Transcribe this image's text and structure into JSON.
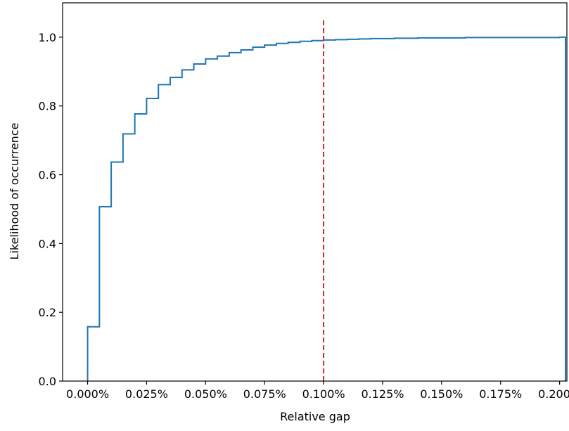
{
  "chart_data": {
    "type": "line",
    "subtype": "step",
    "title": "",
    "xlabel": "Relative gap",
    "ylabel": "Likelihood of occurrence",
    "xlim": [
      -0.0106,
      0.2031
    ],
    "ylim": [
      0.0,
      1.1
    ],
    "x_ticks": [
      0.0,
      0.025,
      0.05,
      0.075,
      0.1,
      0.125,
      0.15,
      0.175,
      0.2
    ],
    "x_tick_labels": [
      "0.000%",
      "0.025%",
      "0.050%",
      "0.075%",
      "0.100%",
      "0.125%",
      "0.150%",
      "0.175%",
      "0.200%"
    ],
    "y_ticks": [
      0.0,
      0.2,
      0.4,
      0.6,
      0.8,
      1.0
    ],
    "y_tick_labels": [
      "0.0",
      "0.2",
      "0.4",
      "0.6",
      "0.8",
      "1.0"
    ],
    "grid": false,
    "legend": "none",
    "colors": {
      "series": "#1f77b4",
      "reference": "#d62728",
      "axes": "#000000"
    },
    "series": [
      {
        "style": "step-post",
        "x": [
          0.0,
          0.005,
          0.01,
          0.015,
          0.02,
          0.025,
          0.03,
          0.035,
          0.04,
          0.045,
          0.05,
          0.055,
          0.06,
          0.065,
          0.07,
          0.075,
          0.08,
          0.085,
          0.09,
          0.095,
          0.1,
          0.105,
          0.11,
          0.115,
          0.12,
          0.125,
          0.13,
          0.135,
          0.14,
          0.145,
          0.15,
          0.155,
          0.16,
          0.165,
          0.17,
          0.175,
          0.18,
          0.185,
          0.19,
          0.195,
          0.2,
          0.2025
        ],
        "y": [
          0.158,
          0.507,
          0.637,
          0.719,
          0.777,
          0.822,
          0.862,
          0.883,
          0.905,
          0.922,
          0.937,
          0.945,
          0.955,
          0.963,
          0.971,
          0.977,
          0.982,
          0.985,
          0.988,
          0.99,
          0.992,
          0.993,
          0.994,
          0.995,
          0.996,
          0.996,
          0.997,
          0.997,
          0.998,
          0.998,
          0.998,
          0.998,
          0.999,
          0.999,
          0.999,
          0.999,
          0.999,
          0.999,
          0.999,
          0.999,
          1.0,
          0.0
        ]
      }
    ],
    "reference_lines": [
      {
        "orientation": "vertical",
        "x": 0.1,
        "y_range": [
          0.0,
          1.05
        ],
        "style": "dashed"
      }
    ]
  }
}
